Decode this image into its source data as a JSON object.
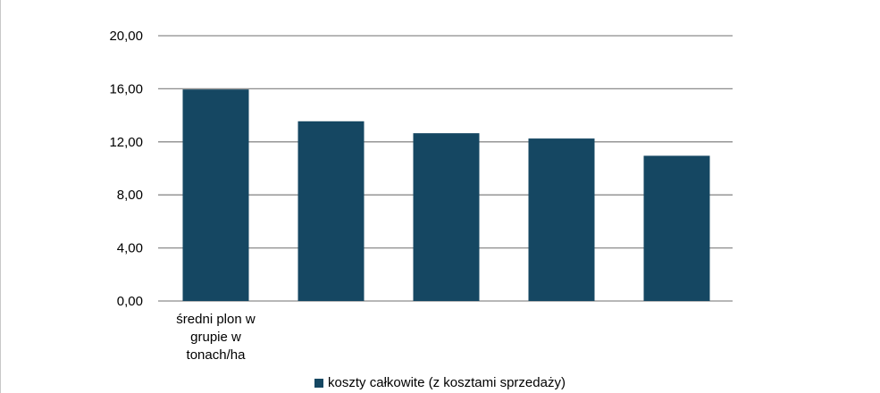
{
  "colors": {
    "bar": "#154762",
    "grid": "#8c8c8c",
    "text": "#000000"
  },
  "chart_data": {
    "type": "bar",
    "categories": [
      [
        "średni plon w",
        "grupie w",
        "tonach/ha"
      ],
      [],
      [],
      [],
      []
    ],
    "series": [
      {
        "name": "koszty całkowite (z kosztami sprzedaży)",
        "values": [
          15.95,
          13.55,
          12.65,
          12.25,
          10.95
        ]
      }
    ],
    "yticks": [
      "0,00",
      "4,00",
      "8,00",
      "12,00",
      "16,00",
      "20,00"
    ],
    "ylim": [
      0,
      20
    ],
    "grid": true,
    "legend_position": "bottom"
  }
}
